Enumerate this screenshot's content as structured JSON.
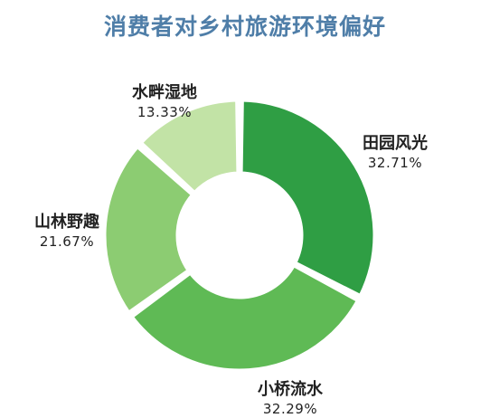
{
  "chart_data": {
    "type": "pie",
    "variant": "donut",
    "title": "消费者对乡村旅游环境偏好",
    "slices": [
      {
        "label": "田园风光",
        "value": 32.71,
        "value_text": "32.71%",
        "color": "#2f9e44"
      },
      {
        "label": "小桥流水",
        "value": 32.29,
        "value_text": "32.29%",
        "color": "#5fba55"
      },
      {
        "label": "山林野趣",
        "value": 21.67,
        "value_text": "21.67%",
        "color": "#8ccc72"
      },
      {
        "label": "水畔湿地",
        "value": 13.33,
        "value_text": "13.33%",
        "color": "#c2e3a6"
      }
    ],
    "start_position": "top",
    "direction": "clockwise",
    "legend": "none"
  }
}
